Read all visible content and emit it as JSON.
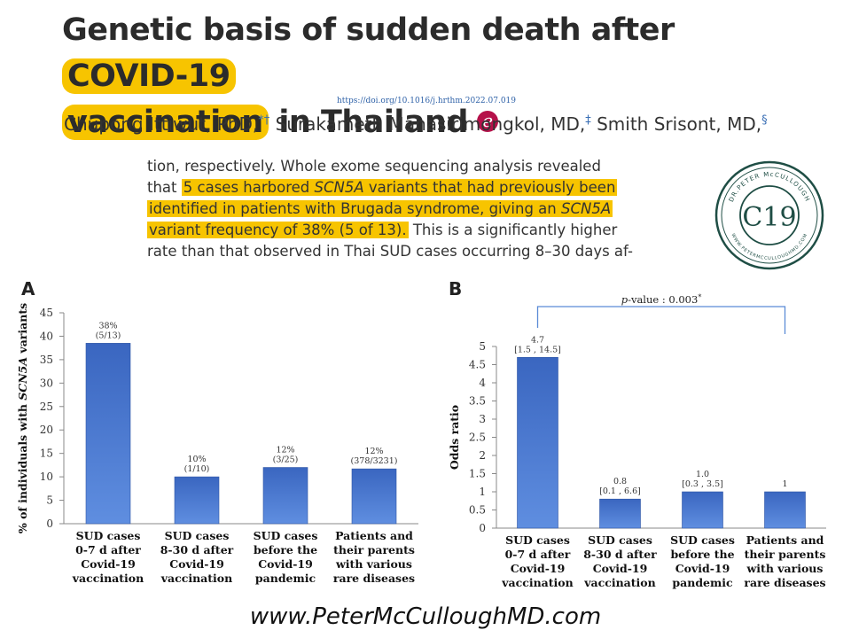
{
  "title": {
    "part1": "Genetic basis of sudden death after ",
    "highlight1": "COVID-19",
    "highlight2": "vaccination",
    "part2": " in Thailand",
    "badge": "e"
  },
  "doi": "https://doi.org/10.1016/j.hrthm.2022.07.019",
  "authors": [
    {
      "name": "Chupong Ittiwut, PhD,",
      "marks": "*†"
    },
    {
      "name": "Surakameth Mahasirimongkol, MD,",
      "marks": "‡"
    },
    {
      "name": "Smith Srisont, MD,",
      "marks": "§"
    }
  ],
  "excerpt": {
    "line1": "tion, respectively. Whole exome sequencing analysis revealed",
    "line2_plain": "that ",
    "line2_hl_a": "5 cases harbored ",
    "line2_hl_gene": "SCN5A",
    "line2_hl_b": " variants that had previously been",
    "line3_hl_a": "identified in patients with Brugada syndrome, giving an ",
    "line3_hl_gene": "SCN5A",
    "line4_hl": "variant frequency of 38% (5 of 13).",
    "line4_plain": " This is a significantly higher",
    "line5": "rate than that observed in Thai SUD cases occurring 8–30 days af-"
  },
  "seal": {
    "arc_text": "DR.PETER McCULLOUGH",
    "bottom_text": "WWW.PETERMCCULLOUGHMD.COM",
    "center": "C19",
    "color": "#1f4e45"
  },
  "panels": {
    "a": "A",
    "b": "B"
  },
  "chart_data": [
    {
      "type": "bar",
      "panel": "A",
      "categories": [
        [
          "SUD cases",
          "0-7 d after",
          "Covid-19",
          "vaccination"
        ],
        [
          "SUD cases",
          "8-30 d after",
          "Covid-19",
          "vaccination"
        ],
        [
          "SUD cases",
          "before the",
          "Covid-19",
          "pandemic"
        ],
        [
          "Patients and",
          "their parents",
          "with various",
          "rare diseases"
        ]
      ],
      "values": [
        38.5,
        10,
        12,
        11.7
      ],
      "data_labels": [
        [
          "38%",
          "(5/13)"
        ],
        [
          "10%",
          "(1/10)"
        ],
        [
          "12%",
          "(3/25)"
        ],
        [
          "12%",
          "(378/3231)"
        ]
      ],
      "ylabel_prefix": "% of individuals with ",
      "ylabel_gene": "SCN5A",
      "ylabel_suffix": " variants",
      "ylim": [
        0,
        45
      ],
      "yticks": [
        "0",
        "5",
        "10",
        "15",
        "20",
        "25",
        "30",
        "35",
        "40",
        "45"
      ],
      "bar_color": "#4472c4"
    },
    {
      "type": "bar",
      "panel": "B",
      "categories": [
        [
          "SUD cases",
          "0-7 d after",
          "Covid-19",
          "vaccination"
        ],
        [
          "SUD cases",
          "8-30 d after",
          "Covid-19",
          "vaccination"
        ],
        [
          "SUD cases",
          "before the",
          "Covid-19",
          "pandemic"
        ],
        [
          "Patients and",
          "their parents",
          "with various",
          "rare diseases"
        ]
      ],
      "values": [
        4.7,
        0.8,
        1.0,
        1.0
      ],
      "data_labels": [
        [
          "4.7",
          "[1.5 , 14.5]"
        ],
        [
          "0.8",
          "[0.1 , 6.6]"
        ],
        [
          "1.0",
          "[0.3 , 3.5]"
        ],
        [
          "1"
        ]
      ],
      "ylabel": "Odds ratio",
      "ylim": [
        0,
        5
      ],
      "yticks": [
        "0",
        "0.5",
        "1",
        "1.5",
        "2",
        "2.5",
        "3",
        "3.5",
        "4",
        "4.5",
        "5"
      ],
      "annotation_p": "p",
      "annotation_rest": "-value : 0.003",
      "annotation_mark": "*",
      "bar_color": "#4472c4"
    }
  ],
  "footer": "www.PeterMcCulloughMD.com"
}
